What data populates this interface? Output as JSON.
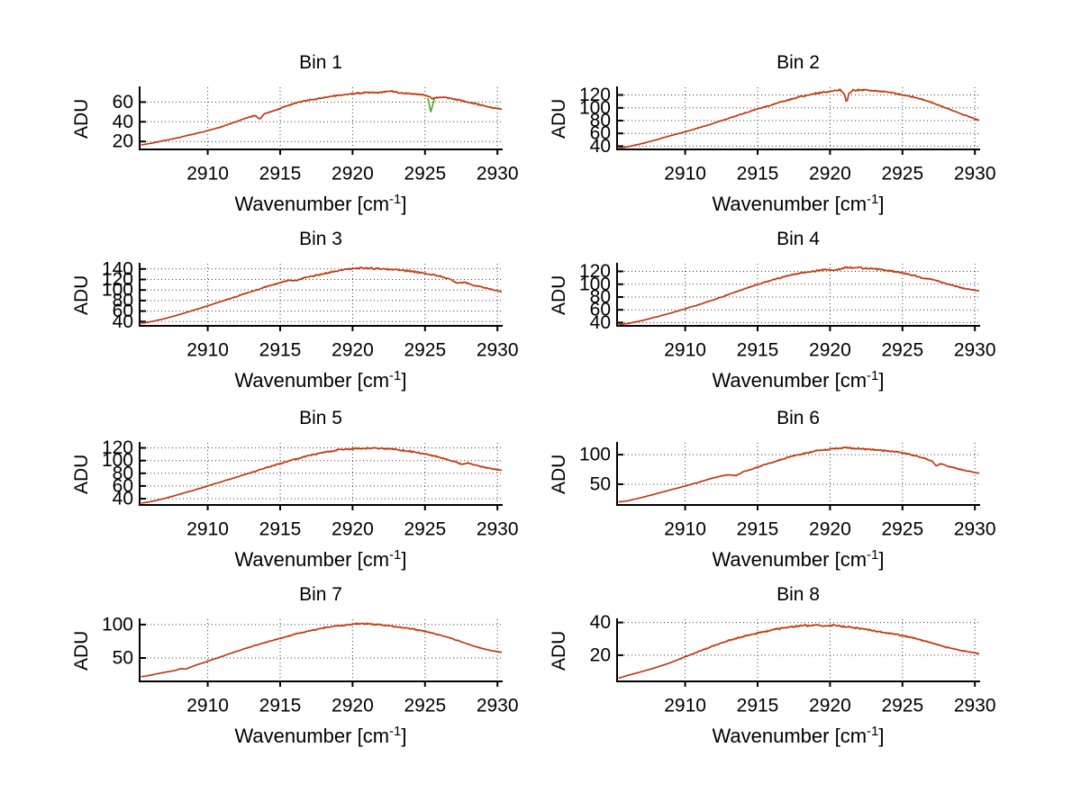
{
  "figure": {
    "background": "#ffffff",
    "axis_color": "#000000",
    "grid_color": "#3c3c3c",
    "line_color_primary": "#b5301a",
    "line_color_secondary": "#e8782c",
    "artifact_color_green": "#4aa428"
  },
  "axis_labels": {
    "x_main": "Wavenumber [cm",
    "x_sup": "-1",
    "x_end": "]",
    "y": "ADU"
  },
  "chart_data": [
    {
      "type": "line",
      "title": "Bin 1",
      "xlabel": "Wavenumber [cm⁻¹]",
      "ylabel": "ADU",
      "xlim": [
        2905.3,
        2930.3
      ],
      "ylim": [
        12,
        75
      ],
      "xticks": [
        2910,
        2915,
        2920,
        2925,
        2930
      ],
      "yticks": [
        20,
        40,
        60
      ],
      "grid": true,
      "noise": 1.0,
      "points": [
        [
          2905.4,
          16.5
        ],
        [
          2906,
          18
        ],
        [
          2907,
          21
        ],
        [
          2908,
          24
        ],
        [
          2909,
          27.5
        ],
        [
          2910,
          31
        ],
        [
          2911,
          35
        ],
        [
          2912,
          40.5
        ],
        [
          2912.6,
          43.5
        ],
        [
          2913.3,
          46.5
        ],
        [
          2913.6,
          42.5
        ],
        [
          2913.9,
          48
        ],
        [
          2914.5,
          51
        ],
        [
          2915,
          53.5
        ],
        [
          2916,
          59
        ],
        [
          2917,
          62
        ],
        [
          2918,
          64.5
        ],
        [
          2919,
          67
        ],
        [
          2920,
          68.5
        ],
        [
          2921,
          69.5
        ],
        [
          2922,
          70
        ],
        [
          2922.6,
          71
        ],
        [
          2923.2,
          69.5
        ],
        [
          2924,
          68.5
        ],
        [
          2925,
          67
        ],
        [
          2925.3,
          65.5
        ],
        [
          2925.5,
          63.5
        ],
        [
          2925.8,
          65
        ],
        [
          2926.5,
          64.5
        ],
        [
          2927,
          63
        ],
        [
          2928,
          60
        ],
        [
          2929,
          56.5
        ],
        [
          2929.6,
          54.5
        ],
        [
          2930.3,
          52.5
        ]
      ],
      "artifact": [
        [
          2925.2,
          64
        ],
        [
          2925.4,
          50
        ],
        [
          2925.65,
          63.5
        ]
      ]
    },
    {
      "type": "line",
      "title": "Bin 2",
      "xlabel": "Wavenumber [cm⁻¹]",
      "ylabel": "ADU",
      "xlim": [
        2905.3,
        2930.3
      ],
      "ylim": [
        35,
        132
      ],
      "xticks": [
        2910,
        2915,
        2920,
        2925,
        2930
      ],
      "yticks": [
        40,
        60,
        80,
        100,
        120
      ],
      "grid": true,
      "noise": 1.5,
      "points": [
        [
          2905.4,
          37
        ],
        [
          2906,
          39
        ],
        [
          2907,
          44
        ],
        [
          2908,
          50
        ],
        [
          2909,
          56.5
        ],
        [
          2910,
          62.5
        ],
        [
          2911,
          69
        ],
        [
          2912,
          76
        ],
        [
          2913,
          83.5
        ],
        [
          2914,
          91
        ],
        [
          2915,
          98
        ],
        [
          2916,
          105
        ],
        [
          2917,
          111.5
        ],
        [
          2918,
          117.5
        ],
        [
          2919,
          122.5
        ],
        [
          2920,
          125.5
        ],
        [
          2920.7,
          127.5
        ],
        [
          2921,
          121
        ],
        [
          2921.15,
          106
        ],
        [
          2921.3,
          122
        ],
        [
          2921.6,
          127.5
        ],
        [
          2922.3,
          128
        ],
        [
          2923,
          127
        ],
        [
          2924,
          124.5
        ],
        [
          2925,
          120.5
        ],
        [
          2926,
          115.5
        ],
        [
          2927,
          108.5
        ],
        [
          2928,
          100
        ],
        [
          2929,
          91
        ],
        [
          2930.3,
          80.5
        ]
      ]
    },
    {
      "type": "line",
      "title": "Bin 3",
      "xlabel": "Wavenumber [cm⁻¹]",
      "ylabel": "ADU",
      "xlim": [
        2905.3,
        2930.3
      ],
      "ylim": [
        32,
        150
      ],
      "xticks": [
        2910,
        2915,
        2920,
        2925,
        2930
      ],
      "yticks": [
        40,
        60,
        80,
        100,
        120,
        140
      ],
      "grid": true,
      "noise": 1.8,
      "points": [
        [
          2905.4,
          37
        ],
        [
          2906,
          39.5
        ],
        [
          2907,
          45.5
        ],
        [
          2908,
          53
        ],
        [
          2909,
          61.5
        ],
        [
          2910,
          70
        ],
        [
          2911,
          79
        ],
        [
          2912,
          88
        ],
        [
          2913,
          97
        ],
        [
          2914,
          106
        ],
        [
          2915,
          114
        ],
        [
          2915.6,
          118.5
        ],
        [
          2916.1,
          117
        ],
        [
          2916.6,
          123
        ],
        [
          2917.4,
          127
        ],
        [
          2918,
          131
        ],
        [
          2919,
          137
        ],
        [
          2919.8,
          140.5
        ],
        [
          2920.6,
          141.5
        ],
        [
          2921.4,
          141.5
        ],
        [
          2922.2,
          139.5
        ],
        [
          2923,
          139
        ],
        [
          2924,
          136
        ],
        [
          2925,
          131.5
        ],
        [
          2926,
          126.5
        ],
        [
          2926.7,
          121
        ],
        [
          2927.2,
          113.5
        ],
        [
          2927.7,
          115
        ],
        [
          2928.3,
          109.5
        ],
        [
          2929,
          105
        ],
        [
          2929.6,
          101
        ],
        [
          2930.3,
          96.5
        ]
      ]
    },
    {
      "type": "line",
      "title": "Bin 4",
      "xlabel": "Wavenumber [cm⁻¹]",
      "ylabel": "ADU",
      "xlim": [
        2905.3,
        2930.3
      ],
      "ylim": [
        35,
        132
      ],
      "xticks": [
        2910,
        2915,
        2920,
        2925,
        2930
      ],
      "yticks": [
        40,
        60,
        80,
        100,
        120
      ],
      "grid": true,
      "noise": 1.5,
      "points": [
        [
          2905.4,
          37
        ],
        [
          2906,
          38.5
        ],
        [
          2907,
          43
        ],
        [
          2908,
          49
        ],
        [
          2909,
          55
        ],
        [
          2910,
          61.5
        ],
        [
          2911,
          68.5
        ],
        [
          2912,
          76
        ],
        [
          2913,
          84
        ],
        [
          2914,
          92
        ],
        [
          2915,
          99.5
        ],
        [
          2916,
          106.5
        ],
        [
          2917,
          112.5
        ],
        [
          2918,
          117.5
        ],
        [
          2919,
          120.5
        ],
        [
          2919.6,
          123
        ],
        [
          2920.2,
          122
        ],
        [
          2921,
          125.5
        ],
        [
          2921.8,
          126
        ],
        [
          2922.6,
          124.5
        ],
        [
          2923.4,
          123.5
        ],
        [
          2924.2,
          121
        ],
        [
          2925,
          117.5
        ],
        [
          2926,
          112.5
        ],
        [
          2926.5,
          108.5
        ],
        [
          2927.1,
          107.5
        ],
        [
          2928,
          101
        ],
        [
          2929,
          95
        ],
        [
          2929.6,
          92
        ],
        [
          2930.3,
          89.5
        ]
      ]
    },
    {
      "type": "line",
      "title": "Bin 5",
      "xlabel": "Wavenumber [cm⁻¹]",
      "ylabel": "ADU",
      "xlim": [
        2905.3,
        2930.3
      ],
      "ylim": [
        30,
        128
      ],
      "xticks": [
        2910,
        2915,
        2920,
        2925,
        2930
      ],
      "yticks": [
        40,
        60,
        80,
        100,
        120
      ],
      "grid": true,
      "noise": 1.5,
      "points": [
        [
          2905.4,
          33
        ],
        [
          2906,
          35
        ],
        [
          2907,
          40
        ],
        [
          2908,
          46.5
        ],
        [
          2909,
          53
        ],
        [
          2910,
          60
        ],
        [
          2911,
          67
        ],
        [
          2912,
          74
        ],
        [
          2913,
          81
        ],
        [
          2914,
          88.5
        ],
        [
          2915,
          95.5
        ],
        [
          2916,
          102
        ],
        [
          2917,
          108
        ],
        [
          2918,
          113
        ],
        [
          2919,
          116.5
        ],
        [
          2920,
          118.5
        ],
        [
          2921,
          120
        ],
        [
          2922,
          119.5
        ],
        [
          2923,
          117.5
        ],
        [
          2924,
          114.5
        ],
        [
          2925,
          110.5
        ],
        [
          2926,
          105.5
        ],
        [
          2927,
          98.5
        ],
        [
          2927.5,
          94.5
        ],
        [
          2928,
          96
        ],
        [
          2928.6,
          92
        ],
        [
          2929.3,
          88.5
        ],
        [
          2930.3,
          84.5
        ]
      ]
    },
    {
      "type": "line",
      "title": "Bin 6",
      "xlabel": "Wavenumber [cm⁻¹]",
      "ylabel": "ADU",
      "xlim": [
        2905.3,
        2930.3
      ],
      "ylim": [
        15,
        120
      ],
      "xticks": [
        2910,
        2915,
        2920,
        2925,
        2930
      ],
      "yticks": [
        50,
        100
      ],
      "grid": true,
      "noise": 1.4,
      "points": [
        [
          2905.4,
          20
        ],
        [
          2906,
          22
        ],
        [
          2907,
          27.5
        ],
        [
          2908,
          34
        ],
        [
          2909,
          40.5
        ],
        [
          2910,
          47
        ],
        [
          2911,
          54
        ],
        [
          2912,
          61
        ],
        [
          2912.6,
          64.5
        ],
        [
          2913.1,
          66
        ],
        [
          2913.5,
          64.5
        ],
        [
          2914,
          71
        ],
        [
          2915,
          79
        ],
        [
          2916,
          87
        ],
        [
          2917,
          94.5
        ],
        [
          2917.6,
          99
        ],
        [
          2918.2,
          102
        ],
        [
          2919,
          106
        ],
        [
          2920,
          109.5
        ],
        [
          2921,
          111.5
        ],
        [
          2922,
          110.5
        ],
        [
          2923,
          108.5
        ],
        [
          2924,
          106.5
        ],
        [
          2925,
          103.5
        ],
        [
          2926,
          97.5
        ],
        [
          2926.6,
          93
        ],
        [
          2927.1,
          88
        ],
        [
          2927.35,
          81
        ],
        [
          2927.7,
          85
        ],
        [
          2928.1,
          80.5
        ],
        [
          2928.6,
          77.5
        ],
        [
          2929.2,
          74
        ],
        [
          2929.7,
          71.5
        ],
        [
          2930.3,
          68.5
        ]
      ]
    },
    {
      "type": "line",
      "title": "Bin 7",
      "xlabel": "Wavenumber [cm⁻¹]",
      "ylabel": "ADU",
      "xlim": [
        2905.3,
        2930.3
      ],
      "ylim": [
        15,
        108
      ],
      "xticks": [
        2910,
        2915,
        2920,
        2925,
        2930
      ],
      "yticks": [
        50,
        100
      ],
      "grid": true,
      "noise": 1.2,
      "points": [
        [
          2905.4,
          22
        ],
        [
          2906,
          24
        ],
        [
          2907,
          28.5
        ],
        [
          2907.8,
          31.5
        ],
        [
          2908.1,
          34
        ],
        [
          2908.5,
          33.5
        ],
        [
          2909,
          38
        ],
        [
          2910,
          45
        ],
        [
          2911,
          52.5
        ],
        [
          2912,
          60
        ],
        [
          2913,
          67
        ],
        [
          2914,
          73.5
        ],
        [
          2915,
          79.5
        ],
        [
          2916,
          85.5
        ],
        [
          2917,
          90.5
        ],
        [
          2918,
          95
        ],
        [
          2919,
          98
        ],
        [
          2920,
          100.5
        ],
        [
          2920.6,
          101.5
        ],
        [
          2921.2,
          100.5
        ],
        [
          2922,
          99.5
        ],
        [
          2923,
          97
        ],
        [
          2924,
          94
        ],
        [
          2925,
          90
        ],
        [
          2926,
          84.5
        ],
        [
          2927,
          78
        ],
        [
          2928,
          70.5
        ],
        [
          2929,
          64
        ],
        [
          2929.6,
          61
        ],
        [
          2930.3,
          58.5
        ]
      ]
    },
    {
      "type": "line",
      "title": "Bin 8",
      "xlabel": "Wavenumber [cm⁻¹]",
      "ylabel": "ADU",
      "xlim": [
        2905.3,
        2930.3
      ],
      "ylim": [
        4,
        42
      ],
      "xticks": [
        2910,
        2915,
        2920,
        2925,
        2930
      ],
      "yticks": [
        20,
        40
      ],
      "grid": true,
      "noise": 0.6,
      "points": [
        [
          2905.4,
          6
        ],
        [
          2906,
          7.5
        ],
        [
          2907,
          10
        ],
        [
          2908,
          12.5
        ],
        [
          2909,
          15.5
        ],
        [
          2910,
          19
        ],
        [
          2911,
          22.5
        ],
        [
          2912,
          26
        ],
        [
          2913,
          29
        ],
        [
          2914,
          31.5
        ],
        [
          2915,
          33.5
        ],
        [
          2916,
          35.5
        ],
        [
          2917,
          37
        ],
        [
          2918,
          38
        ],
        [
          2919,
          38.5
        ],
        [
          2919.6,
          38
        ],
        [
          2920.2,
          38.5
        ],
        [
          2921,
          37.5
        ],
        [
          2922,
          36.5
        ],
        [
          2923,
          35
        ],
        [
          2924,
          33.5
        ],
        [
          2925,
          32
        ],
        [
          2926,
          30
        ],
        [
          2927,
          27.5
        ],
        [
          2928,
          25
        ],
        [
          2929,
          23
        ],
        [
          2930.3,
          21
        ]
      ]
    }
  ]
}
